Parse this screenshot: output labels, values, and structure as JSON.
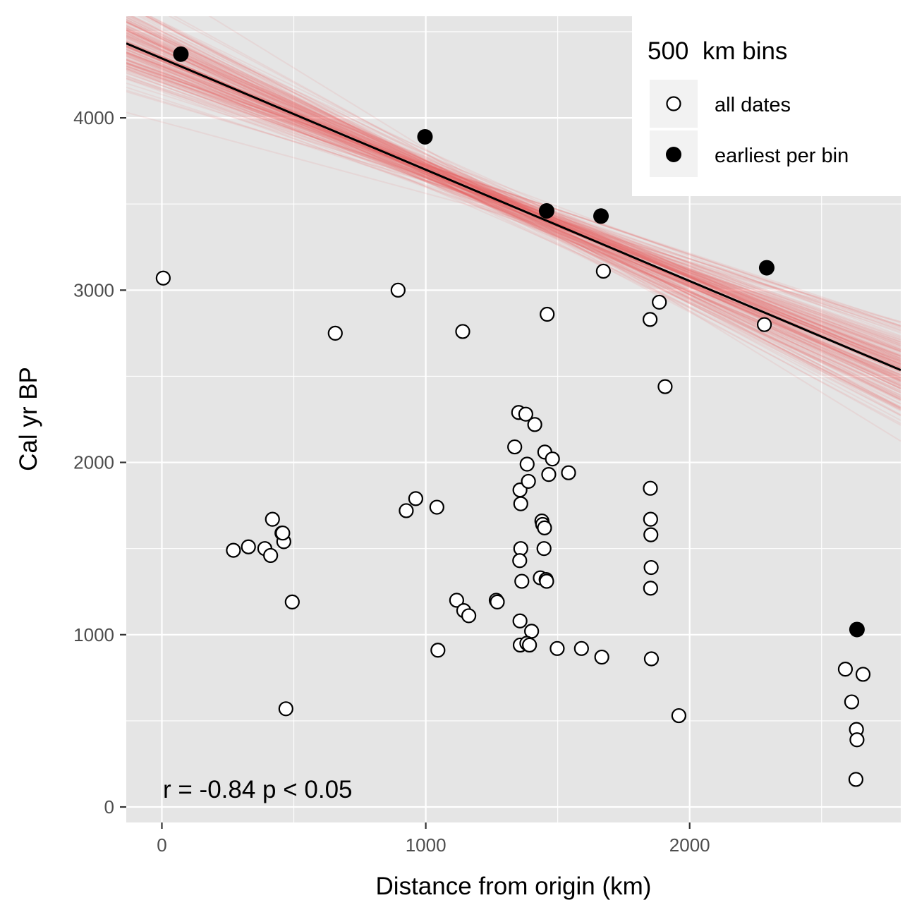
{
  "chart_data": {
    "type": "scatter",
    "xlabel": "Distance from origin (km)",
    "ylabel": "Cal yr BP",
    "xlim": [
      -135,
      2800
    ],
    "ylim": [
      -90,
      4590
    ],
    "x_ticks": [
      0,
      1000,
      2000
    ],
    "y_ticks": [
      0,
      1000,
      2000,
      3000,
      4000
    ],
    "x_tick_labels": [
      "0",
      "1000",
      "2000"
    ],
    "y_tick_labels": [
      "0",
      "1000",
      "2000",
      "3000",
      "4000"
    ],
    "grid": true,
    "legend": {
      "title": "500  km bins",
      "position": "top-right",
      "entries": [
        "all dates",
        "earliest per bin"
      ]
    },
    "annotation": "r = -0.84 p < 0.05",
    "regression_line": {
      "intercept": 4345,
      "slope": -0.646
    },
    "regression_ensemble": {
      "count": 200,
      "intercept_center": 4345,
      "intercept_sd": 110,
      "slope_center": -0.646,
      "slope_sd": 0.085
    },
    "colors": {
      "ensemble": "#ec5f5f",
      "line": "#000000",
      "panel": "#e5e5e5",
      "grid": "#ffffff"
    },
    "series": [
      {
        "name": "all dates",
        "marker": "open-circle",
        "x": [
          5,
          271,
          328,
          390,
          412,
          419,
          455,
          462,
          470,
          494,
          458,
          657,
          895,
          926,
          962,
          1042,
          1046,
          1117,
          1140,
          1144,
          1163,
          1267,
          1271,
          1337,
          1352,
          1360,
          1356,
          1364,
          1357,
          1360,
          1357,
          1358,
          1379,
          1389,
          1384,
          1413,
          1401,
          1383,
          1393,
          1434,
          1440,
          1443,
          1450,
          1451,
          1448,
          1456,
          1458,
          1460,
          1466,
          1480,
          1498,
          1541,
          1590,
          1667,
          1673,
          1850,
          1851,
          1852,
          1853,
          1854,
          1852,
          1855,
          1885,
          1907,
          1959,
          2283,
          2590,
          2614,
          2632,
          2634,
          2630,
          2657
        ],
        "y": [
          3070,
          1490,
          1510,
          1500,
          1460,
          1670,
          1590,
          1540,
          570,
          1190,
          1590,
          2750,
          3000,
          1720,
          1790,
          1740,
          910,
          1200,
          2760,
          1140,
          1110,
          1200,
          1190,
          2090,
          2290,
          1500,
          1430,
          1310,
          1080,
          1760,
          1840,
          940,
          2280,
          1890,
          1990,
          2220,
          1020,
          950,
          940,
          1330,
          1660,
          1640,
          1620,
          2060,
          1500,
          1320,
          1310,
          2860,
          1930,
          2020,
          920,
          1940,
          920,
          870,
          3110,
          2830,
          1850,
          1670,
          1580,
          1390,
          1270,
          860,
          2930,
          2440,
          530,
          2800,
          800,
          610,
          450,
          390,
          160,
          770
        ]
      },
      {
        "name": "earliest per bin",
        "marker": "filled-circle",
        "x": [
          72,
          997,
          1458,
          1664,
          2292,
          2634
        ],
        "y": [
          4370,
          3890,
          3460,
          3430,
          3130,
          1030
        ]
      }
    ]
  }
}
